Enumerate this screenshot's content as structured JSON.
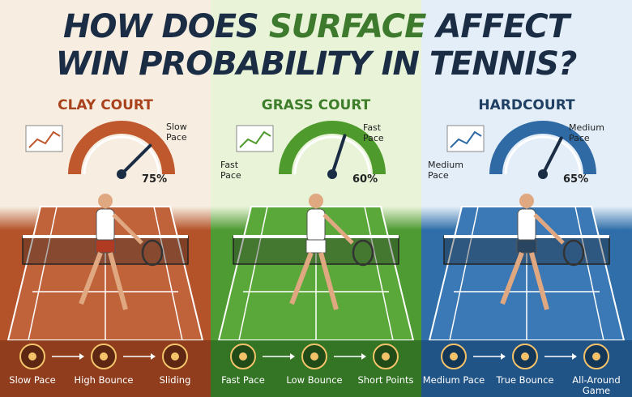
{
  "title": {
    "before": "HOW DOES",
    "highlight": "SURFACE",
    "after": "AFFECT",
    "line2": "WIN PROBABILITY IN TENNIS?"
  },
  "panels": [
    {
      "name": "CLAY COURT",
      "win_probability": {
        "value": 75,
        "label": "75%"
      },
      "pace_labels": [
        "Slow Pace"
      ],
      "features": [
        "Slow Pace",
        "High Bounce",
        "Sliding"
      ]
    },
    {
      "name": "GRASS COURT",
      "win_probability": {
        "value": 60,
        "label": "60%"
      },
      "pace_labels": [
        "Fast Pace",
        "Fast Pace"
      ],
      "features": [
        "Fast Pace",
        "Low Bounce",
        "Short Points"
      ]
    },
    {
      "name": "HARDCOURT",
      "win_probability": {
        "value": 65,
        "label": "65%"
      },
      "pace_labels": [
        "Medium Pace",
        "Medium Pace"
      ],
      "features": [
        "Medium Pace",
        "True Bounce",
        "All-Around Game"
      ]
    }
  ]
}
